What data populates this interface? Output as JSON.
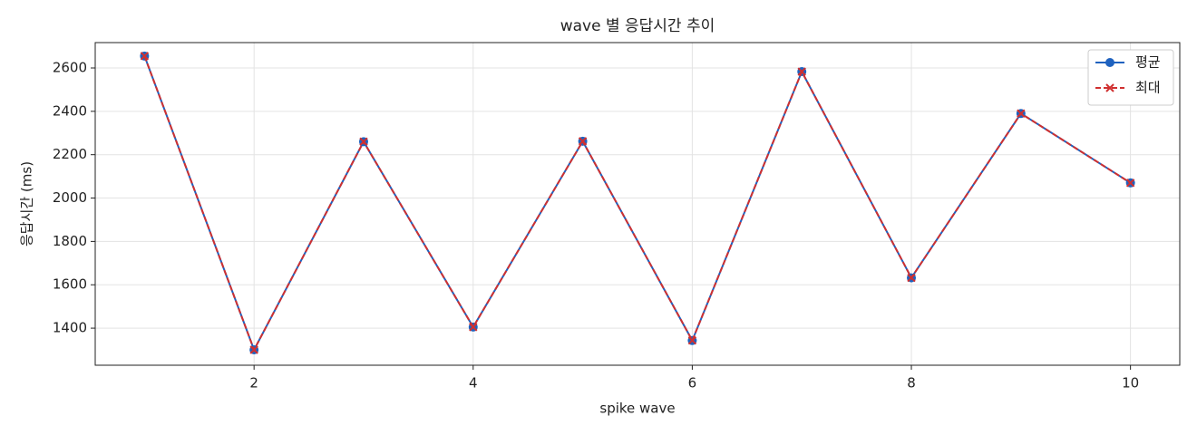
{
  "chart_data": {
    "type": "line",
    "title": "wave 별 응답시간 추이",
    "x_label": "spike wave",
    "y_label": "응답시간 (ms)",
    "x": [
      1,
      2,
      3,
      4,
      5,
      6,
      7,
      8,
      9,
      10
    ],
    "series": [
      {
        "name": "평균",
        "color": "#1f62bf",
        "marker": "o",
        "dash": false,
        "values": [
          2655,
          1300,
          2260,
          1405,
          2262,
          1343,
          2583,
          1632,
          2390,
          2070
        ]
      },
      {
        "name": "최대",
        "color": "#d03030",
        "marker": "x",
        "dash": true,
        "values": [
          2655,
          1300,
          2260,
          1405,
          2262,
          1343,
          2583,
          1632,
          2390,
          2070
        ]
      }
    ],
    "xlim": [
      0.55,
      10.45
    ],
    "xticks": [
      2,
      4,
      6,
      8,
      10
    ],
    "ylim": [
      1229,
      2717
    ],
    "yticks": [
      1400,
      1600,
      1800,
      2000,
      2200,
      2400,
      2600
    ],
    "grid": true,
    "legend": "upper right"
  }
}
